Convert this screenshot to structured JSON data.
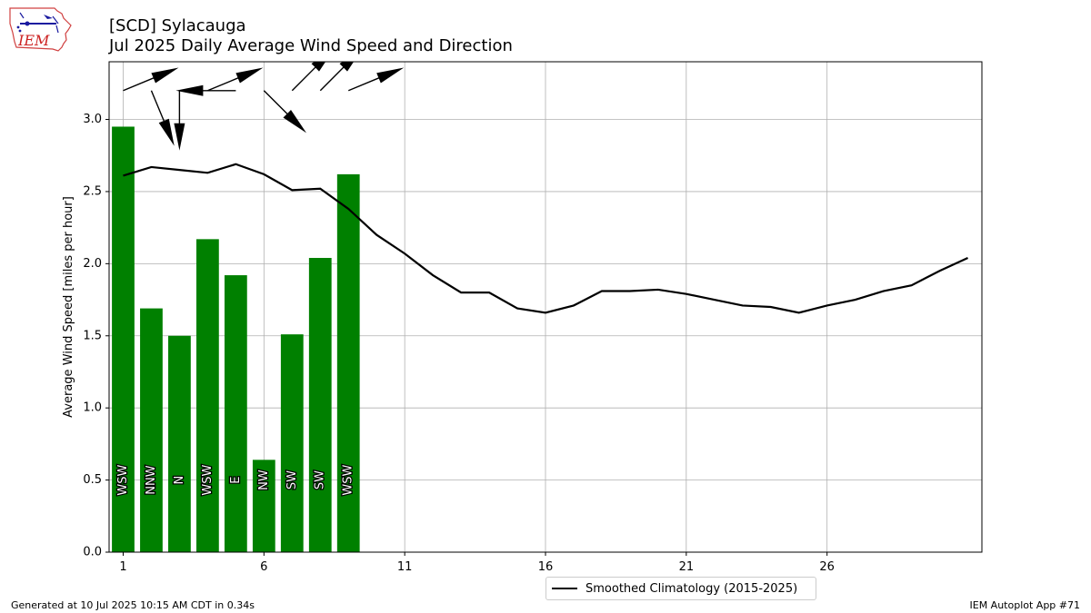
{
  "header": {
    "title_line1": "[SCD] Sylacauga",
    "title_line2": "Jul 2025 Daily Average Wind Speed and Direction"
  },
  "logo": {
    "text": "IEM"
  },
  "footer": {
    "generated": "Generated at 10 Jul 2025 10:15 AM CDT in 0.34s",
    "app": "IEM Autoplot App #71"
  },
  "colors": {
    "bar": "#008000",
    "line": "#000000",
    "grid": "#b0b0b0"
  },
  "chart_data": {
    "type": "bar",
    "ylabel": "Average Wind Speed [miles per hour]",
    "xlim": [
      0.5,
      31.5
    ],
    "ylim": [
      0,
      3.4
    ],
    "xticks": [
      1,
      6,
      11,
      16,
      21,
      26
    ],
    "yticks": [
      0.0,
      0.5,
      1.0,
      1.5,
      2.0,
      2.5,
      3.0
    ],
    "grid": true,
    "legend_placement": "below",
    "bars": [
      {
        "day": 1,
        "speed": 2.95,
        "dir": "WSW",
        "deg": 247.5
      },
      {
        "day": 2,
        "speed": 1.69,
        "dir": "NNW",
        "deg": 337.5
      },
      {
        "day": 3,
        "speed": 1.5,
        "dir": "N",
        "deg": 0
      },
      {
        "day": 4,
        "speed": 2.17,
        "dir": "WSW",
        "deg": 247.5
      },
      {
        "day": 5,
        "speed": 1.92,
        "dir": "E",
        "deg": 90
      },
      {
        "day": 6,
        "speed": 0.64,
        "dir": "NW",
        "deg": 315
      },
      {
        "day": 7,
        "speed": 1.51,
        "dir": "SW",
        "deg": 225
      },
      {
        "day": 8,
        "speed": 2.04,
        "dir": "SW",
        "deg": 225
      },
      {
        "day": 9,
        "speed": 2.62,
        "dir": "WSW",
        "deg": 247.5
      }
    ],
    "climatology": {
      "name": "Smoothed Climatology (2015-2025)",
      "days": [
        1,
        2,
        3,
        4,
        5,
        6,
        7,
        8,
        9,
        10,
        11,
        12,
        13,
        14,
        15,
        16,
        17,
        18,
        19,
        20,
        21,
        22,
        23,
        24,
        25,
        26,
        27,
        28,
        29,
        30,
        31
      ],
      "values": [
        2.61,
        2.67,
        2.65,
        2.63,
        2.69,
        2.62,
        2.51,
        2.52,
        2.38,
        2.2,
        2.07,
        1.92,
        1.8,
        1.8,
        1.69,
        1.66,
        1.71,
        1.81,
        1.81,
        1.82,
        1.79,
        1.75,
        1.71,
        1.7,
        1.66,
        1.71,
        1.75,
        1.81,
        1.85,
        1.95,
        2.04
      ]
    }
  }
}
